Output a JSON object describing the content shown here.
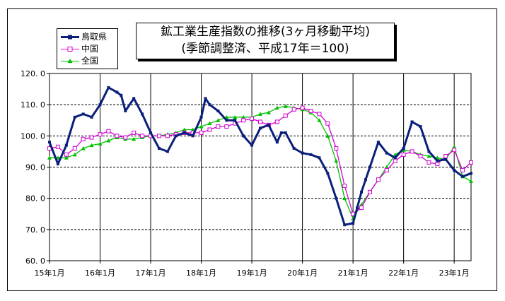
{
  "chart_data": {
    "type": "line",
    "title": "鉱工業生産指数の推移(3ヶ月移動平均)",
    "subtitle": "(季節調整済、平成17年＝100)",
    "xlabel": "",
    "ylabel": "",
    "ylim": [
      60,
      120
    ],
    "y_ticks": [
      "60. 0",
      "70. 0",
      "80. 0",
      "90. 0",
      "100. 0",
      "110. 0",
      "120. 0"
    ],
    "y_tick_values": [
      60,
      70,
      80,
      90,
      100,
      110,
      120
    ],
    "x_tick_labels": [
      "15年1月",
      "16年1月",
      "17年1月",
      "18年1月",
      "19年1月",
      "20年1月",
      "21年1月",
      "22年1月",
      "23年1月"
    ],
    "x_tick_positions": [
      0,
      12,
      24,
      36,
      48,
      60,
      72,
      84,
      96
    ],
    "xlim": [
      0,
      100
    ],
    "grid": "horizontal dashed lines, vertical solid lines at January",
    "legend_position": "top-left",
    "series": [
      {
        "name": "鳥取県",
        "color": "#0a1f7a",
        "marker": "filled-square",
        "x": [
          0,
          2,
          4,
          6,
          8,
          10,
          12,
          14,
          16,
          17,
          18,
          20,
          22,
          24,
          26,
          28,
          30,
          32,
          34,
          36,
          37,
          38,
          40,
          42,
          44,
          46,
          48,
          50,
          52,
          54,
          55,
          56,
          58,
          60,
          62,
          64,
          66,
          68,
          70,
          72,
          73,
          74,
          75,
          76,
          78,
          80,
          82,
          84,
          86,
          88,
          90,
          92,
          94,
          96,
          98,
          100
        ],
        "values": [
          98.0,
          91.0,
          97.0,
          106.0,
          107.0,
          106.0,
          110.0,
          115.5,
          114.0,
          113.0,
          108.0,
          112.0,
          107.0,
          101.0,
          96.0,
          95.0,
          100.0,
          101.0,
          100.0,
          106.0,
          112.0,
          110.0,
          108.0,
          105.0,
          105.0,
          100.0,
          97.0,
          102.5,
          103.5,
          98.0,
          101.0,
          101.0,
          96.0,
          94.5,
          94.0,
          93.0,
          88.0,
          80.0,
          71.5,
          72.0,
          77.0,
          82.0,
          86.0,
          90.0,
          98.0,
          94.5,
          93.0,
          96.0,
          104.5,
          103.0,
          95.0,
          92.0,
          92.5,
          89.0,
          87.0,
          88.0
        ]
      },
      {
        "name": "中国",
        "color": "#d400d4",
        "marker": "open-square",
        "x": [
          0,
          2,
          4,
          6,
          8,
          10,
          12,
          14,
          16,
          18,
          20,
          22,
          24,
          26,
          28,
          30,
          32,
          34,
          36,
          38,
          40,
          42,
          44,
          46,
          48,
          50,
          52,
          54,
          56,
          58,
          60,
          62,
          64,
          66,
          68,
          70,
          72,
          74,
          76,
          78,
          80,
          82,
          84,
          86,
          88,
          90,
          92,
          94,
          96,
          98,
          100
        ],
        "values": [
          96.0,
          96.5,
          94.0,
          96.0,
          99.0,
          99.5,
          100.5,
          101.5,
          100.0,
          99.5,
          101.0,
          100.0,
          100.0,
          100.0,
          100.0,
          100.5,
          101.0,
          101.0,
          101.0,
          102.0,
          103.0,
          103.0,
          104.0,
          105.0,
          105.5,
          104.5,
          103.5,
          104.5,
          106.5,
          108.5,
          109.0,
          108.0,
          107.0,
          104.0,
          96.0,
          84.0,
          75.0,
          77.0,
          82.0,
          86.0,
          89.0,
          92.0,
          94.0,
          95.0,
          93.5,
          91.5,
          91.0,
          93.5,
          95.5,
          89.0,
          91.5
        ]
      },
      {
        "name": "全国",
        "color": "#00c000",
        "marker": "filled-triangle",
        "x": [
          0,
          2,
          4,
          6,
          8,
          10,
          12,
          14,
          16,
          18,
          20,
          22,
          24,
          26,
          28,
          30,
          32,
          34,
          36,
          38,
          40,
          42,
          44,
          46,
          48,
          50,
          52,
          54,
          56,
          58,
          60,
          62,
          64,
          66,
          68,
          70,
          72,
          74,
          76,
          78,
          80,
          82,
          84,
          86,
          88,
          90,
          92,
          94,
          96,
          98,
          100
        ],
        "values": [
          93.0,
          93.0,
          93.0,
          94.0,
          96.0,
          97.0,
          97.5,
          98.5,
          99.5,
          99.0,
          99.0,
          99.5,
          100.0,
          100.0,
          100.5,
          101.0,
          102.0,
          102.0,
          103.0,
          104.0,
          105.0,
          106.0,
          106.0,
          106.0,
          106.0,
          107.0,
          107.5,
          109.0,
          109.5,
          109.0,
          108.5,
          107.5,
          105.0,
          100.0,
          92.0,
          80.0,
          73.5,
          78.0,
          82.0,
          86.0,
          90.0,
          94.0,
          95.5,
          95.0,
          94.0,
          93.5,
          93.0,
          92.5,
          96.5,
          87.0,
          85.5
        ]
      }
    ]
  }
}
